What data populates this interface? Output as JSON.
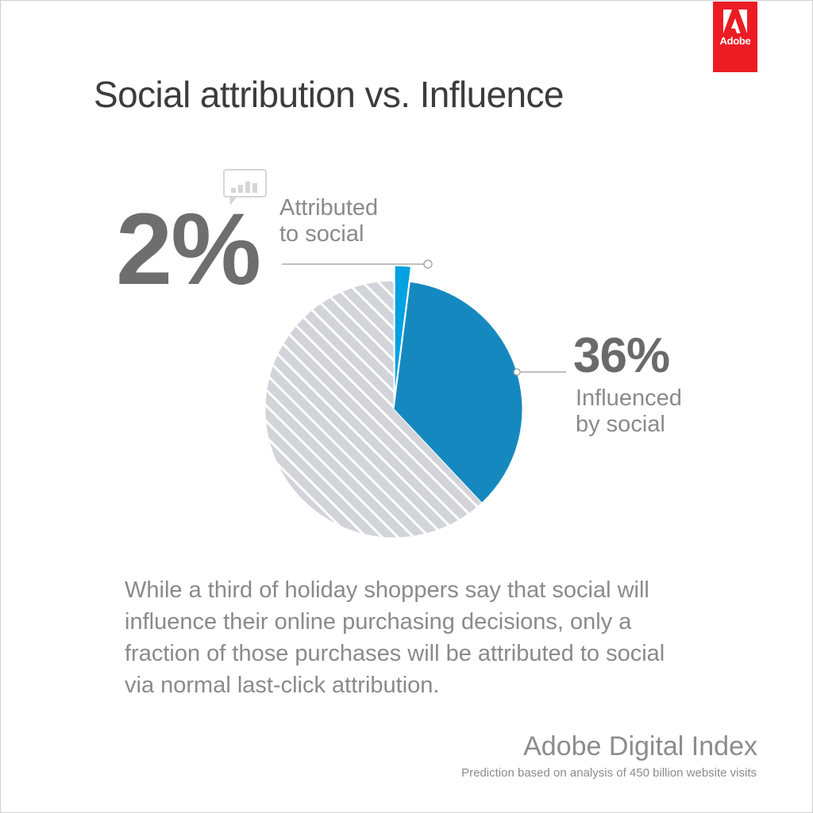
{
  "logo": {
    "text": "Adobe",
    "color": "#ec1c24"
  },
  "header": {
    "title": "Social attribution vs. Influence"
  },
  "icons": {
    "annotation_icon": "speech-bubble-bar-chart-icon"
  },
  "chart_data": {
    "type": "pie",
    "title": "Social attribution vs. Influence",
    "slices": [
      {
        "label": "Attributed to social",
        "value": 2,
        "display": "2%",
        "color": "#00a2e2",
        "exploded": true
      },
      {
        "label": "Influenced by social",
        "value": 36,
        "display": "36%",
        "color": "#1589bf"
      },
      {
        "label": "",
        "value": 62,
        "color": "#d3d3da",
        "pattern": "diagonal-stripes"
      }
    ],
    "start_angle_deg": 0,
    "direction": "clockwise"
  },
  "annotations": {
    "attributed": {
      "value": "2%",
      "line1": "Attributed",
      "line2": "to social"
    },
    "influenced": {
      "value": "36%",
      "line1": "Influenced",
      "line2": "by social"
    }
  },
  "body": {
    "lines": [
      "While a third of holiday shoppers say that social will",
      "influence their online purchasing decisions, only a",
      "fraction of those purchases will be attributed to social",
      "via normal last-click attribution."
    ]
  },
  "footer": {
    "brand": "Adobe Digital Index",
    "note": "Prediction based on analysis of 450 billion website visits"
  }
}
